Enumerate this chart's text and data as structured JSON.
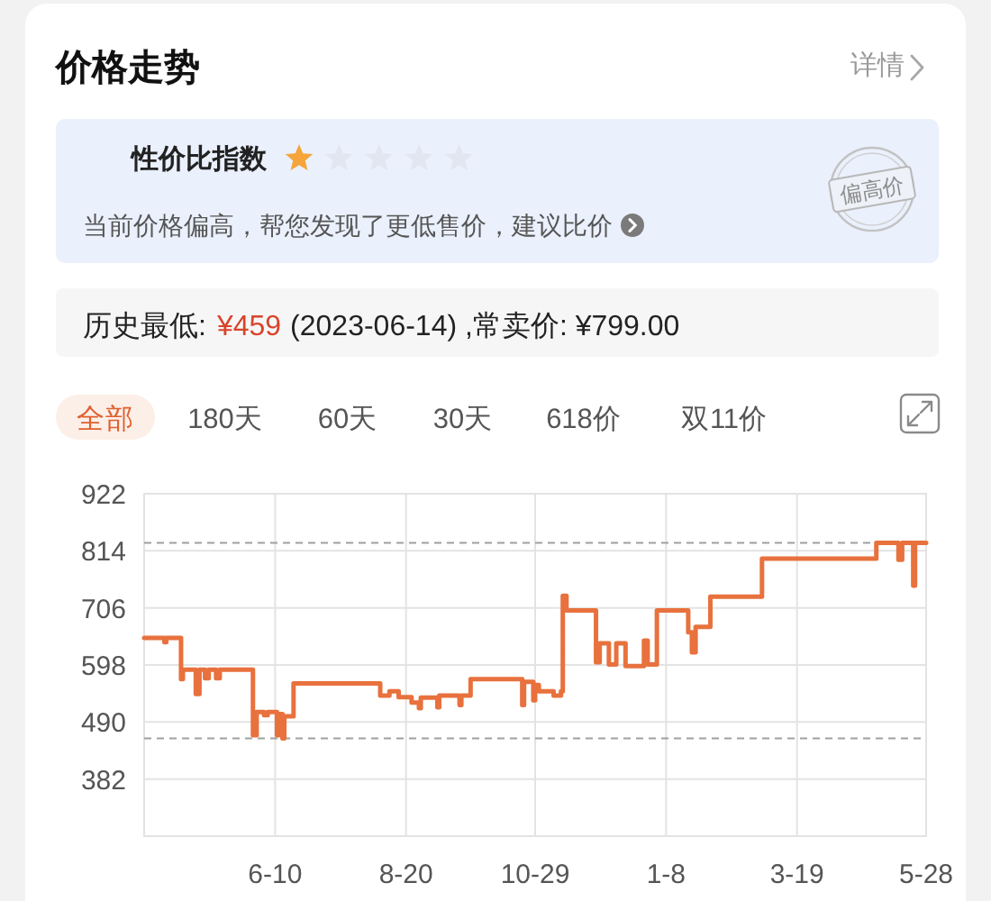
{
  "chart_data": {
    "type": "step",
    "title": "价格走势",
    "x": [
      "2023-03-31",
      "2023-04-11",
      "2023-04-12",
      "2023-04-20",
      "2023-04-21",
      "2023-04-28",
      "2023-04-30",
      "2023-05-03",
      "2023-05-05",
      "2023-05-09",
      "2023-05-11",
      "2023-05-29",
      "2023-05-31",
      "2023-06-04",
      "2023-06-06",
      "2023-06-11",
      "2023-06-12",
      "2023-06-14",
      "2023-06-15",
      "2023-06-20",
      "2023-08-06",
      "2023-08-11",
      "2023-08-16",
      "2023-08-23",
      "2023-08-27",
      "2023-08-28",
      "2023-09-06",
      "2023-09-07",
      "2023-09-18",
      "2023-09-19",
      "2023-09-24",
      "2023-10-22",
      "2023-10-23",
      "2023-10-28",
      "2023-10-29",
      "2023-10-31",
      "2023-11-08",
      "2023-11-12",
      "2023-11-13",
      "2023-11-15",
      "2023-12-01",
      "2023-12-03",
      "2023-12-08",
      "2023-12-12",
      "2023-12-17",
      "2023-12-27",
      "2023-12-29",
      "2024-01-03",
      "2024-01-20",
      "2024-01-22",
      "2024-01-24",
      "2024-02-01",
      "2024-02-29",
      "2024-05-01",
      "2024-05-13",
      "2024-05-15",
      "2024-05-21",
      "2024-05-22",
      "2024-05-28"
    ],
    "values": [
      649,
      641,
      649,
      571,
      589,
      543,
      589,
      573,
      589,
      573,
      589,
      465,
      509,
      503,
      509,
      465,
      505,
      459,
      501,
      563,
      540,
      548,
      537,
      527,
      516,
      536,
      518,
      540,
      522,
      540,
      571,
      522,
      566,
      531,
      560,
      548,
      540,
      548,
      729,
      701,
      603,
      639,
      599,
      639,
      596,
      644,
      599,
      701,
      660,
      622,
      670,
      727,
      799,
      829,
      797,
      829,
      748,
      829,
      829
    ],
    "color": "#e8713d",
    "line_style": "solid",
    "xlim": [
      "2023-03-31",
      "2024-05-28"
    ],
    "ylim": [
      274,
      922
    ],
    "xticks": [
      {
        "value": "2023-06-10",
        "label": "6-10"
      },
      {
        "value": "2023-08-20",
        "label": "8-20"
      },
      {
        "value": "2023-10-29",
        "label": "10-29"
      },
      {
        "value": "2024-01-08",
        "label": "1-8"
      },
      {
        "value": "2024-03-19",
        "label": "3-19"
      },
      {
        "value": "2024-05-28",
        "label": "5-28"
      }
    ],
    "yticks": [
      382,
      490,
      598,
      706,
      814,
      922
    ],
    "grid": true,
    "ref_lines": [
      {
        "axis": "y",
        "value": 829,
        "color": "#a0a0a0",
        "line_style": "dashed"
      },
      {
        "axis": "y",
        "value": 459,
        "color": "#a0a0a0",
        "line_style": "dashed"
      }
    ],
    "annotations": [
      "详情",
      "性价比指数",
      "当前价格偏高，帮您发现了更低售价，建议比价",
      "偏高价",
      "历史最低:",
      "¥459",
      "(2023-06-14) ,常卖价: ¥799.00",
      "全部",
      "180天",
      "60天",
      "30天",
      "618价",
      "双11价"
    ]
  }
}
